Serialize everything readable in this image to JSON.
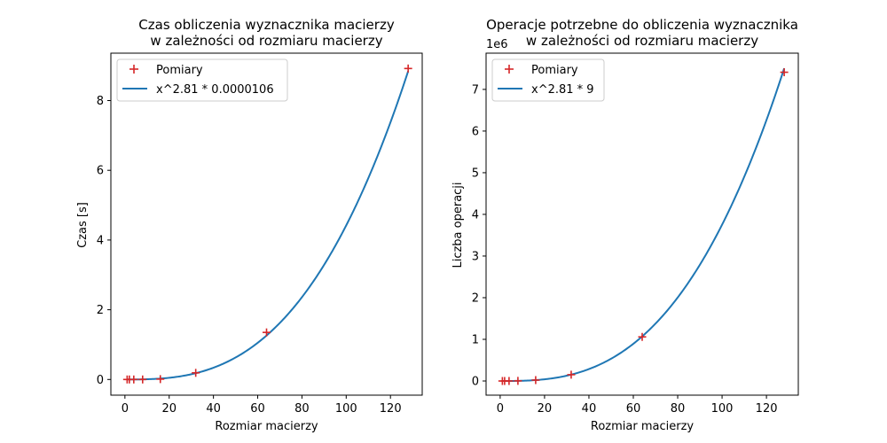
{
  "chart_data": [
    {
      "type": "scatter",
      "title": [
        "Czas obliczenia wyznacznika macierzy",
        "w zależności od rozmiaru macierzy"
      ],
      "xlabel": "Rozmiar macierzy",
      "ylabel": "Czas [s]",
      "xlim": [
        -6.35,
        134.35
      ],
      "ylim": [
        -0.45,
        9.36
      ],
      "xticks": [
        0,
        20,
        40,
        60,
        80,
        100,
        120
      ],
      "yticks": [
        0,
        2,
        4,
        6,
        8
      ],
      "offset_text": "",
      "legend_position": "top-left",
      "series": [
        {
          "name": "Pomiary",
          "kind": "scatter",
          "marker": "+",
          "color": "#d62728",
          "x": [
            1,
            2,
            4,
            8,
            16,
            32,
            64,
            128
          ],
          "y": [
            0.0,
            0.0,
            0.0,
            0.0,
            0.01,
            0.19,
            1.35,
            8.92
          ]
        },
        {
          "name": "x^2.81 * 0.0000106",
          "kind": "line",
          "color": "#1f77b4",
          "exponent": 2.81,
          "coefficient": 1.06e-05,
          "x_range": [
            1,
            128
          ]
        }
      ]
    },
    {
      "type": "scatter",
      "title": [
        "Operacje potrzebne do obliczenia wyznacznika",
        "w zależności od rozmiaru macierzy"
      ],
      "xlabel": "Rozmiar macierzy",
      "ylabel": "Liczba operacji",
      "xlim": [
        -6.35,
        134.35
      ],
      "ylim": [
        -340000,
        7870000
      ],
      "xticks": [
        0,
        20,
        40,
        60,
        80,
        100,
        120
      ],
      "yticks": [
        0,
        1000000,
        2000000,
        3000000,
        4000000,
        5000000,
        6000000,
        7000000
      ],
      "ytick_labels": [
        "0",
        "1",
        "2",
        "3",
        "4",
        "5",
        "6",
        "7"
      ],
      "offset_text": "1e6",
      "legend_position": "top-left",
      "series": [
        {
          "name": "Pomiary",
          "kind": "scatter",
          "marker": "+",
          "color": "#d62728",
          "x": [
            1,
            2,
            4,
            8,
            16,
            32,
            64,
            128
          ],
          "y": [
            1,
            63,
            441,
            3087,
            21609,
            151263,
            1058841,
            7411887
          ]
        },
        {
          "name": "x^2.81 * 9",
          "kind": "line",
          "color": "#1f77b4",
          "exponent": 2.81,
          "coefficient": 9,
          "x_range": [
            1,
            128
          ]
        }
      ]
    }
  ]
}
